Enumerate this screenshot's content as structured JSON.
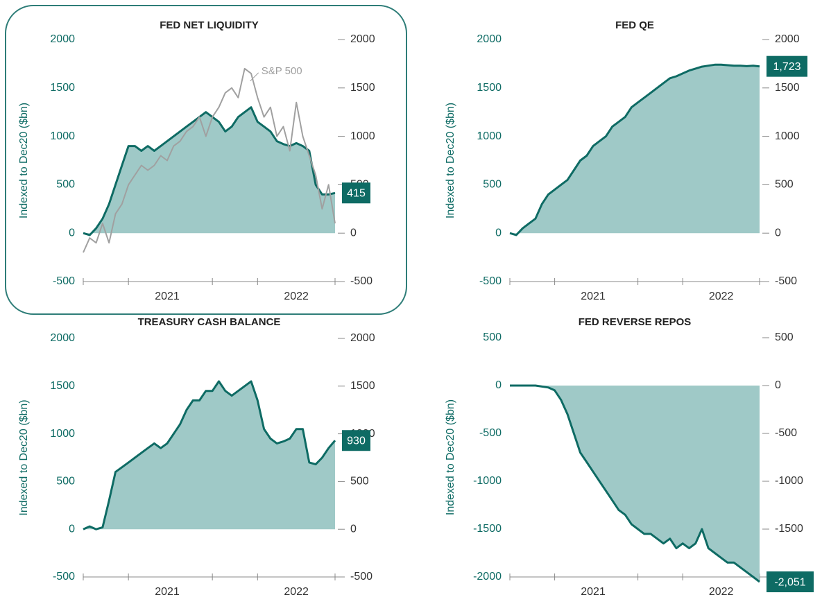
{
  "chart_data": [
    {
      "type": "area",
      "title": "FED NET LIQUIDITY",
      "y_label": "Indexed to Dec20 ($bn)",
      "categories": [
        null,
        null,
        null,
        null,
        null,
        null,
        null,
        null,
        null,
        null,
        null,
        null,
        null,
        "2021",
        null,
        null,
        null,
        null,
        null,
        null,
        null,
        null,
        null,
        null,
        null,
        null,
        null,
        null,
        null,
        null,
        null,
        null,
        null,
        "2022",
        null,
        null,
        null,
        null,
        null,
        null
      ],
      "ylim": [
        -500,
        2000
      ],
      "yticks": [
        -500,
        0,
        500,
        1000,
        1500,
        2000
      ],
      "series": [
        {
          "color": "#0e6b64",
          "fill": "#9fc9c7",
          "values": [
            0,
            -20,
            50,
            150,
            300,
            500,
            700,
            900,
            900,
            850,
            900,
            850,
            900,
            950,
            1000,
            1050,
            1100,
            1150,
            1200,
            1250,
            1200,
            1150,
            1050,
            1100,
            1200,
            1250,
            1300,
            1150,
            1100,
            1050,
            950,
            920,
            900,
            930,
            900,
            850,
            500,
            400,
            400,
            415
          ],
          "value_labels": [
            null,
            null,
            null,
            null,
            null,
            null,
            null,
            null,
            null,
            null,
            null,
            null,
            null,
            null,
            null,
            null,
            null,
            null,
            null,
            null,
            null,
            null,
            null,
            null,
            null,
            null,
            null,
            null,
            null,
            null,
            null,
            null,
            null,
            null,
            null,
            null,
            null,
            null,
            null,
            "415"
          ]
        },
        {
          "name": "S&P 500",
          "color": "#a0a0a0",
          "values": [
            -200,
            -50,
            -100,
            100,
            -100,
            200,
            300,
            500,
            600,
            700,
            650,
            700,
            800,
            750,
            900,
            950,
            1050,
            1100,
            1200,
            1000,
            1200,
            1300,
            1450,
            1500,
            1400,
            1700,
            1650,
            1400,
            1200,
            1300,
            1000,
            1100,
            850,
            1350,
            1000,
            800,
            600,
            250,
            500,
            100
          ]
        }
      ]
    },
    {
      "type": "area",
      "title": "FED QE",
      "y_label": "Indexed to Dec20 ($bn)",
      "categories": [
        null,
        null,
        null,
        null,
        null,
        null,
        null,
        null,
        null,
        null,
        null,
        null,
        null,
        "2021",
        null,
        null,
        null,
        null,
        null,
        null,
        null,
        null,
        null,
        null,
        null,
        null,
        null,
        null,
        null,
        null,
        null,
        null,
        null,
        "2022",
        null,
        null,
        null,
        null,
        null,
        null
      ],
      "ylim": [
        -500,
        2000
      ],
      "yticks": [
        -500,
        0,
        500,
        1000,
        1500,
        2000
      ],
      "series": [
        {
          "color": "#0e6b64",
          "fill": "#9fc9c7",
          "values": [
            0,
            -20,
            50,
            100,
            150,
            300,
            400,
            450,
            500,
            550,
            650,
            750,
            800,
            900,
            950,
            1000,
            1100,
            1150,
            1200,
            1300,
            1350,
            1400,
            1450,
            1500,
            1550,
            1600,
            1620,
            1650,
            1680,
            1700,
            1720,
            1730,
            1740,
            1740,
            1735,
            1730,
            1730,
            1725,
            1730,
            1723
          ],
          "value_labels": [
            null,
            null,
            null,
            null,
            null,
            null,
            null,
            null,
            null,
            null,
            null,
            null,
            null,
            null,
            null,
            null,
            null,
            null,
            null,
            null,
            null,
            null,
            null,
            null,
            null,
            null,
            null,
            null,
            null,
            null,
            null,
            null,
            null,
            null,
            null,
            null,
            null,
            null,
            null,
            "1,723"
          ]
        }
      ]
    },
    {
      "type": "area",
      "title": "TREASURY CASH BALANCE",
      "y_label": "Indexed to Dec20 ($bn)",
      "categories": [
        null,
        null,
        null,
        null,
        null,
        null,
        null,
        null,
        null,
        null,
        null,
        null,
        null,
        "2021",
        null,
        null,
        null,
        null,
        null,
        null,
        null,
        null,
        null,
        null,
        null,
        null,
        null,
        null,
        null,
        null,
        null,
        null,
        null,
        "2022",
        null,
        null,
        null,
        null,
        null,
        null
      ],
      "ylim": [
        -500,
        2000
      ],
      "yticks": [
        -500,
        0,
        500,
        1000,
        1500,
        2000
      ],
      "series": [
        {
          "color": "#0e6b64",
          "fill": "#9fc9c7",
          "values": [
            0,
            30,
            0,
            20,
            300,
            600,
            650,
            700,
            750,
            800,
            850,
            900,
            850,
            900,
            1000,
            1100,
            1250,
            1350,
            1350,
            1450,
            1450,
            1550,
            1450,
            1400,
            1450,
            1500,
            1550,
            1350,
            1050,
            950,
            900,
            920,
            950,
            1050,
            1050,
            700,
            680,
            750,
            850,
            930
          ],
          "value_labels": [
            null,
            null,
            null,
            null,
            null,
            null,
            null,
            null,
            null,
            null,
            null,
            null,
            null,
            null,
            null,
            null,
            null,
            null,
            null,
            null,
            null,
            null,
            null,
            null,
            null,
            null,
            null,
            null,
            null,
            null,
            null,
            null,
            null,
            null,
            null,
            null,
            null,
            null,
            null,
            "930"
          ]
        }
      ]
    },
    {
      "type": "area",
      "title": "FED REVERSE REPOS",
      "y_label": "Indexed to Dec20 ($bn)",
      "categories": [
        null,
        null,
        null,
        null,
        null,
        null,
        null,
        null,
        null,
        null,
        null,
        null,
        null,
        "2021",
        null,
        null,
        null,
        null,
        null,
        null,
        null,
        null,
        null,
        null,
        null,
        null,
        null,
        null,
        null,
        null,
        null,
        null,
        null,
        "2022",
        null,
        null,
        null,
        null,
        null,
        null
      ],
      "ylim": [
        -2000,
        500
      ],
      "yticks": [
        -2000,
        -1500,
        -1000,
        -500,
        0,
        500
      ],
      "series": [
        {
          "color": "#0e6b64",
          "fill": "#9fc9c7",
          "values": [
            0,
            0,
            0,
            0,
            0,
            -10,
            -20,
            -50,
            -150,
            -300,
            -500,
            -700,
            -800,
            -900,
            -1000,
            -1100,
            -1200,
            -1300,
            -1350,
            -1450,
            -1500,
            -1550,
            -1550,
            -1600,
            -1650,
            -1600,
            -1700,
            -1650,
            -1700,
            -1650,
            -1500,
            -1700,
            -1750,
            -1800,
            -1850,
            -1850,
            -1900,
            -1950,
            -2000,
            -2051
          ],
          "value_labels": [
            null,
            null,
            null,
            null,
            null,
            null,
            null,
            null,
            null,
            null,
            null,
            null,
            null,
            null,
            null,
            null,
            null,
            null,
            null,
            null,
            null,
            null,
            null,
            null,
            null,
            null,
            null,
            null,
            null,
            null,
            null,
            null,
            null,
            null,
            null,
            null,
            null,
            null,
            null,
            "-2,051"
          ]
        }
      ]
    }
  ]
}
